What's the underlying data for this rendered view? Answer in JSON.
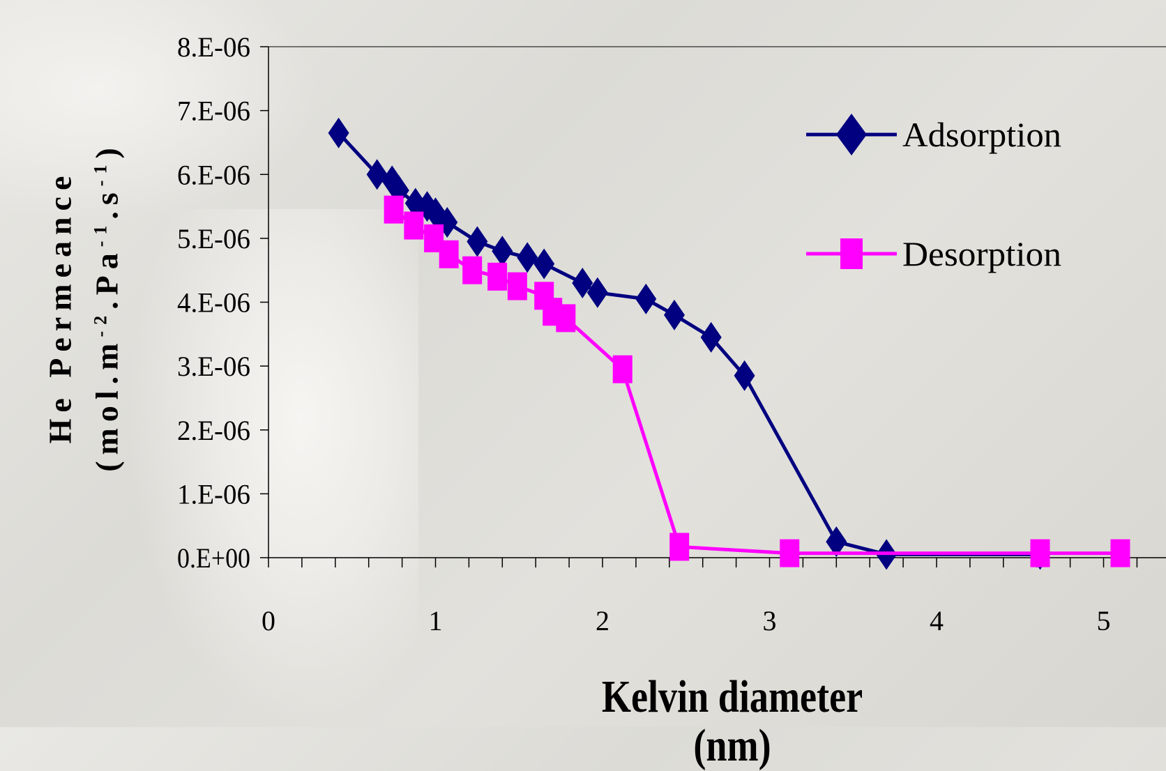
{
  "chart_data": {
    "type": "line",
    "xlabel": "Kelvin diameter (nm)",
    "ylabel": "He Permeance",
    "ylabel_units": "(mol.m-2.Pa-1.s-1)",
    "ylabel_units_parts": [
      "(mol.m",
      "-2",
      ".Pa",
      "-1",
      ".s",
      "-1",
      ")"
    ],
    "xlim": [
      0,
      5.2
    ],
    "ylim": [
      0,
      8e-06
    ],
    "x_ticks": [
      {
        "value": 0,
        "label": "0"
      },
      {
        "value": 1,
        "label": "1"
      },
      {
        "value": 2,
        "label": "2"
      },
      {
        "value": 3,
        "label": "3"
      },
      {
        "value": 4,
        "label": "4"
      },
      {
        "value": 5,
        "label": "5"
      }
    ],
    "y_ticks": [
      {
        "value": 0,
        "label": "0.E+00"
      },
      {
        "value": 1e-06,
        "label": "1.E-06"
      },
      {
        "value": 2e-06,
        "label": "2.E-06"
      },
      {
        "value": 3e-06,
        "label": "3.E-06"
      },
      {
        "value": 4e-06,
        "label": "4.E-06"
      },
      {
        "value": 5e-06,
        "label": "5.E-06"
      },
      {
        "value": 6e-06,
        "label": "6.E-06"
      },
      {
        "value": 7e-06,
        "label": "7.E-06"
      },
      {
        "value": 8e-06,
        "label": "8.E-06"
      }
    ],
    "grid": false,
    "legend_position": "top-right",
    "series": [
      {
        "name": "Adsorption",
        "color": "#000080",
        "marker": "diamond",
        "points": [
          [
            0.42,
            6.65e-06
          ],
          [
            0.65,
            6e-06
          ],
          [
            0.74,
            5.9e-06
          ],
          [
            0.78,
            5.75e-06
          ],
          [
            0.88,
            5.55e-06
          ],
          [
            0.95,
            5.5e-06
          ],
          [
            1.0,
            5.4e-06
          ],
          [
            1.07,
            5.25e-06
          ],
          [
            1.25,
            4.95e-06
          ],
          [
            1.4,
            4.8e-06
          ],
          [
            1.55,
            4.7e-06
          ],
          [
            1.65,
            4.6e-06
          ],
          [
            1.88,
            4.3e-06
          ],
          [
            1.97,
            4.15e-06
          ],
          [
            2.26,
            4.05e-06
          ],
          [
            2.43,
            3.8e-06
          ],
          [
            2.65,
            3.45e-06
          ],
          [
            2.85,
            2.85e-06
          ],
          [
            3.4,
            2.5e-07
          ],
          [
            3.7,
            5e-08
          ],
          [
            4.62,
            5e-08
          ]
        ]
      },
      {
        "name": "Desorption",
        "color": "#ff00ff",
        "marker": "square",
        "points": [
          [
            0.75,
            5.45e-06
          ],
          [
            0.87,
            5.2e-06
          ],
          [
            0.99,
            5e-06
          ],
          [
            1.08,
            4.75e-06
          ],
          [
            1.22,
            4.5e-06
          ],
          [
            1.37,
            4.4e-06
          ],
          [
            1.49,
            4.25e-06
          ],
          [
            1.65,
            4.1e-06
          ],
          [
            1.7,
            3.85e-06
          ],
          [
            1.78,
            3.75e-06
          ],
          [
            2.12,
            2.95e-06
          ],
          [
            2.46,
            1.7e-07
          ],
          [
            3.12,
            7e-08
          ],
          [
            4.62,
            7e-08
          ],
          [
            5.1,
            7e-08
          ]
        ]
      }
    ]
  }
}
